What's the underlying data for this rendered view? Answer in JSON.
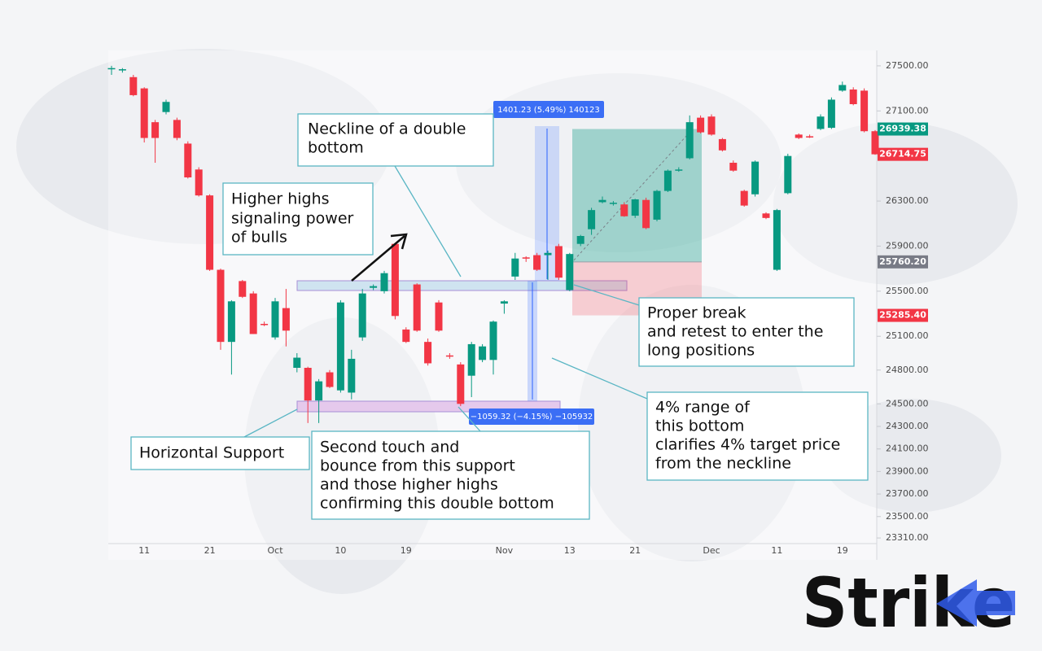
{
  "chart_data": {
    "type": "candlestick",
    "categories": [
      null,
      null,
      null,
      "11",
      null,
      null,
      null,
      null,
      null,
      "21",
      null,
      null,
      null,
      null,
      null,
      "Oct",
      null,
      null,
      null,
      null,
      null,
      "10",
      null,
      null,
      null,
      null,
      null,
      "19",
      null,
      null,
      null,
      null,
      null,
      null,
      null,
      null,
      "Nov",
      null,
      null,
      null,
      null,
      null,
      "13",
      null,
      null,
      null,
      null,
      null,
      "21",
      null,
      null,
      null,
      null,
      null,
      null,
      "Dec",
      null,
      null,
      null,
      null,
      null,
      "11",
      null,
      null,
      null,
      null,
      null,
      "19",
      null,
      null,
      null
    ],
    "open": [
      27470,
      27460,
      27400,
      27300,
      27000,
      27090,
      27020,
      26810,
      26580,
      26350,
      25690,
      25050,
      25590,
      25480,
      25210,
      25090,
      25350,
      24820,
      24820,
      24530,
      24780,
      24620,
      24600,
      25090,
      25530,
      25500,
      25920,
      25160,
      25560,
      25050,
      25400,
      24930,
      24850,
      24750,
      24890,
      24890,
      25390,
      25630,
      25800,
      25820,
      25820,
      25900,
      25510,
      25920,
      26050,
      26290,
      26280,
      26270,
      26170,
      26310,
      26135,
      26390,
      26570,
      26680,
      27040,
      27050,
      26850,
      26640,
      26390,
      26360,
      26190,
      25690,
      26370,
      26890,
      26875,
      26940,
      26950,
      27280,
      27290,
      27280,
      26920
    ],
    "high": [
      27500,
      27480,
      27420,
      27310,
      27020,
      27200,
      27040,
      26830,
      26600,
      26360,
      25700,
      25420,
      25600,
      25500,
      25230,
      25440,
      25520,
      24950,
      24830,
      24720,
      24800,
      25420,
      24980,
      25520,
      25560,
      25680,
      25930,
      25180,
      25570,
      25080,
      25420,
      24950,
      24870,
      25050,
      25030,
      25240,
      25420,
      25840,
      25810,
      25840,
      25860,
      25920,
      25840,
      26000,
      26240,
      26340,
      26300,
      26290,
      26320,
      26330,
      26400,
      26580,
      26600,
      27060,
      27060,
      27070,
      26860,
      26660,
      26400,
      26660,
      26200,
      26230,
      26720,
      26900,
      26890,
      27070,
      27220,
      27360,
      27310,
      27300,
      26930
    ],
    "low": [
      27420,
      27440,
      27230,
      26820,
      26640,
      27070,
      26840,
      26500,
      26340,
      25680,
      24980,
      24760,
      25440,
      25120,
      25190,
      25070,
      25010,
      24780,
      24330,
      24330,
      24640,
      24600,
      24540,
      25060,
      25510,
      25480,
      25250,
      25040,
      25140,
      24840,
      25140,
      24900,
      24480,
      24560,
      24870,
      24760,
      25300,
      25600,
      25760,
      25680,
      25600,
      25600,
      25500,
      25900,
      26000,
      26280,
      26260,
      26160,
      26150,
      26050,
      26120,
      26380,
      26560,
      26670,
      26900,
      26880,
      26740,
      26560,
      26250,
      26340,
      26140,
      25680,
      26360,
      26850,
      26860,
      26930,
      26940,
      27270,
      27150,
      26910,
      26710
    ],
    "close": [
      27480,
      27470,
      27240,
      26860,
      26860,
      27180,
      26860,
      26510,
      26350,
      25690,
      25050,
      25410,
      25450,
      25120,
      25200,
      25410,
      25150,
      24910,
      24530,
      24700,
      24650,
      25400,
      24900,
      25480,
      25545,
      25660,
      25280,
      25050,
      25150,
      24860,
      25150,
      24920,
      24500,
      25030,
      25010,
      25230,
      25410,
      25790,
      25790,
      25690,
      25840,
      25620,
      25830,
      25990,
      26220,
      26310,
      26285,
      26165,
      26315,
      26060,
      26390,
      26570,
      26580,
      27000,
      26910,
      26890,
      26750,
      26570,
      26260,
      26650,
      26150,
      26220,
      26700,
      26860,
      26870,
      27050,
      27200,
      27330,
      27160,
      26920,
      26715
    ],
    "up_color": "#089981",
    "down_color": "#f23645",
    "ylim": [
      23260,
      27615
    ],
    "yticks": [
      {
        "value": 27500,
        "label": "27500.00"
      },
      {
        "value": 27100,
        "label": "27100.00"
      },
      {
        "value": 26300,
        "label": "26300.00"
      },
      {
        "value": 25900,
        "label": "25900.00"
      },
      {
        "value": 25500,
        "label": "25500.00"
      },
      {
        "value": 25100,
        "label": "25100.00"
      },
      {
        "value": 24800,
        "label": "24800.00"
      },
      {
        "value": 24500,
        "label": "24500.00"
      },
      {
        "value": 24300,
        "label": "24300.00"
      },
      {
        "value": 24100,
        "label": "24100.00"
      },
      {
        "value": 23900,
        "label": "23900.00"
      },
      {
        "value": 23700,
        "label": "23700.00"
      },
      {
        "value": 23500,
        "label": "23500.00"
      },
      {
        "value": 23310,
        "label": "23310.00"
      }
    ],
    "price_labels": [
      {
        "value": 26939.38,
        "color": "#089981"
      },
      {
        "value": 26714.75,
        "color": "#f23645"
      },
      {
        "value": 25760.2,
        "label": "25760.20",
        "color": "#787b86"
      },
      {
        "value": 25285.4,
        "label": "25285.40",
        "color": "#f23645"
      }
    ],
    "measure_labels": [
      "1401.23 (5.49%) 140123",
      "−1059.32 (−4.15%) −105932"
    ],
    "annotations": [
      {
        "lines": [
          "Neckline of a double",
          "bottom"
        ]
      },
      {
        "lines": [
          "Higher highs",
          "signaling power",
          "of bulls"
        ]
      },
      {
        "lines": [
          "Horizontal Support"
        ]
      },
      {
        "lines": [
          "Second touch and",
          "bounce from this support",
          "and those higher highs",
          "confirming this double bottom"
        ]
      },
      {
        "lines": [
          "Proper break",
          "and retest to enter the",
          "long positions"
        ]
      },
      {
        "lines": [
          "4% range of",
          "this bottom",
          "clarifies 4% target price",
          "from the neckline"
        ]
      }
    ]
  },
  "logo": "Strike"
}
